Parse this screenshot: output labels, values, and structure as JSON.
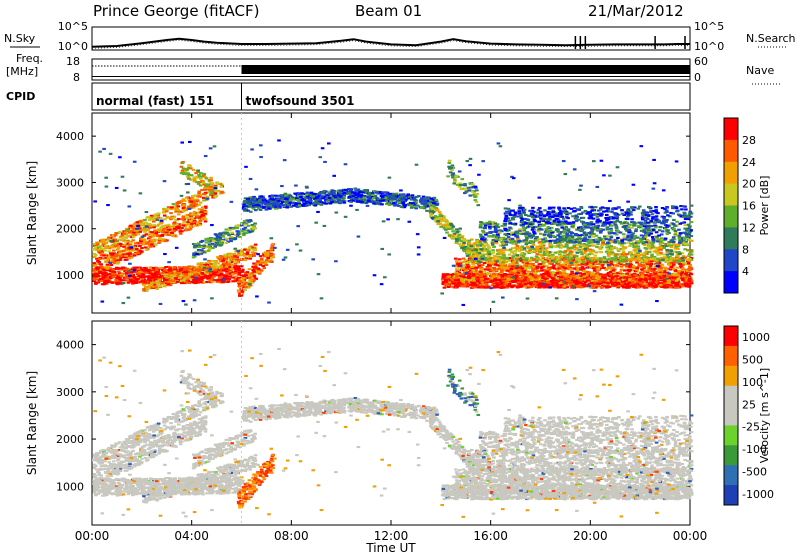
{
  "header": {
    "station": "Prince George (fitACF)",
    "beam": "Beam 01",
    "date": "21/Mar/2012"
  },
  "chart_data": [
    {
      "type": "line",
      "title": "",
      "left_label": "N.Sky",
      "right_label": "N.Search",
      "left_ticks": [
        "10^5",
        "10^0"
      ],
      "right_ticks": [
        "10^5",
        "10^0"
      ],
      "x": [
        0,
        1,
        2,
        3,
        3.5,
        4,
        4.5,
        5,
        6,
        7,
        8,
        9,
        10,
        10.5,
        11,
        12,
        13,
        14,
        14.5,
        15,
        16,
        17,
        18,
        19,
        20,
        21,
        22,
        22.5,
        23,
        23.5,
        24
      ],
      "series": [
        {
          "values": [
            0.3,
            0.5,
            1.2,
            2.0,
            2.3,
            2.0,
            1.6,
            1.3,
            1.0,
            1.0,
            1.1,
            1.2,
            1.8,
            2.2,
            1.6,
            0.9,
            0.7,
            1.6,
            2.2,
            1.7,
            1.1,
            0.9,
            0.8,
            0.7,
            0.8,
            0.9,
            0.9,
            0.9,
            0.9,
            1.0,
            1.0
          ]
        }
      ],
      "spikes_x": [
        19.4,
        19.6,
        19.8,
        22.6,
        23.8
      ]
    },
    {
      "type": "line",
      "left_label": "Freq. [MHz]",
      "right_label": "Nave",
      "left_ticks": [
        "18",
        "8"
      ],
      "right_ticks": [
        "60",
        "0"
      ],
      "series": [
        {
          "x": [
            0,
            24
          ],
          "values": [
            11.2,
            11.2
          ]
        },
        {
          "x": [
            0,
            6,
            6,
            24
          ],
          "values": [
            50,
            50,
            45,
            45
          ]
        }
      ]
    },
    {
      "type": "table",
      "label": "CPID",
      "segments": [
        {
          "start": 0,
          "end": 6,
          "name": "normal (fast) 151"
        },
        {
          "start": 6,
          "end": 24,
          "name": "twofsound 3501"
        }
      ]
    },
    {
      "type": "heatmap",
      "ylabel": "Slant Range [km]",
      "yticks": [
        "1000",
        "2000",
        "3000",
        "4000"
      ],
      "ylim": [
        180,
        4500
      ],
      "colorbar": {
        "label": "Power [dB]",
        "ticks": [
          "4",
          "8",
          "12",
          "16",
          "20",
          "24",
          "28"
        ],
        "range": [
          0,
          32
        ],
        "colors": [
          "#0000ff",
          "#1f47c8",
          "#2f7b5a",
          "#5fae2c",
          "#c8c820",
          "#f0a000",
          "#ff5a00",
          "#ff0000"
        ]
      }
    },
    {
      "type": "heatmap",
      "ylabel": "Slant Range [km]",
      "yticks": [
        "1000",
        "2000",
        "3000",
        "4000"
      ],
      "xlabel": "Time UT",
      "xticks": [
        "00:00",
        "04:00",
        "08:00",
        "12:00",
        "16:00",
        "20:00",
        "00:00"
      ],
      "xlim": [
        0,
        24
      ],
      "ylim": [
        180,
        4500
      ],
      "colorbar": {
        "label": "Velocity [m s^-1]",
        "ticks": [
          "1000",
          "500",
          "100",
          "25",
          "-25",
          "-100",
          "-500",
          "-1000"
        ],
        "colors": [
          "#1f3fb4",
          "#2f6fb4",
          "#3a9a3a",
          "#6cd22c",
          "#c8c8c0",
          "#c8c8c0",
          "#f0a000",
          "#ff6000",
          "#ff0000"
        ]
      }
    }
  ]
}
